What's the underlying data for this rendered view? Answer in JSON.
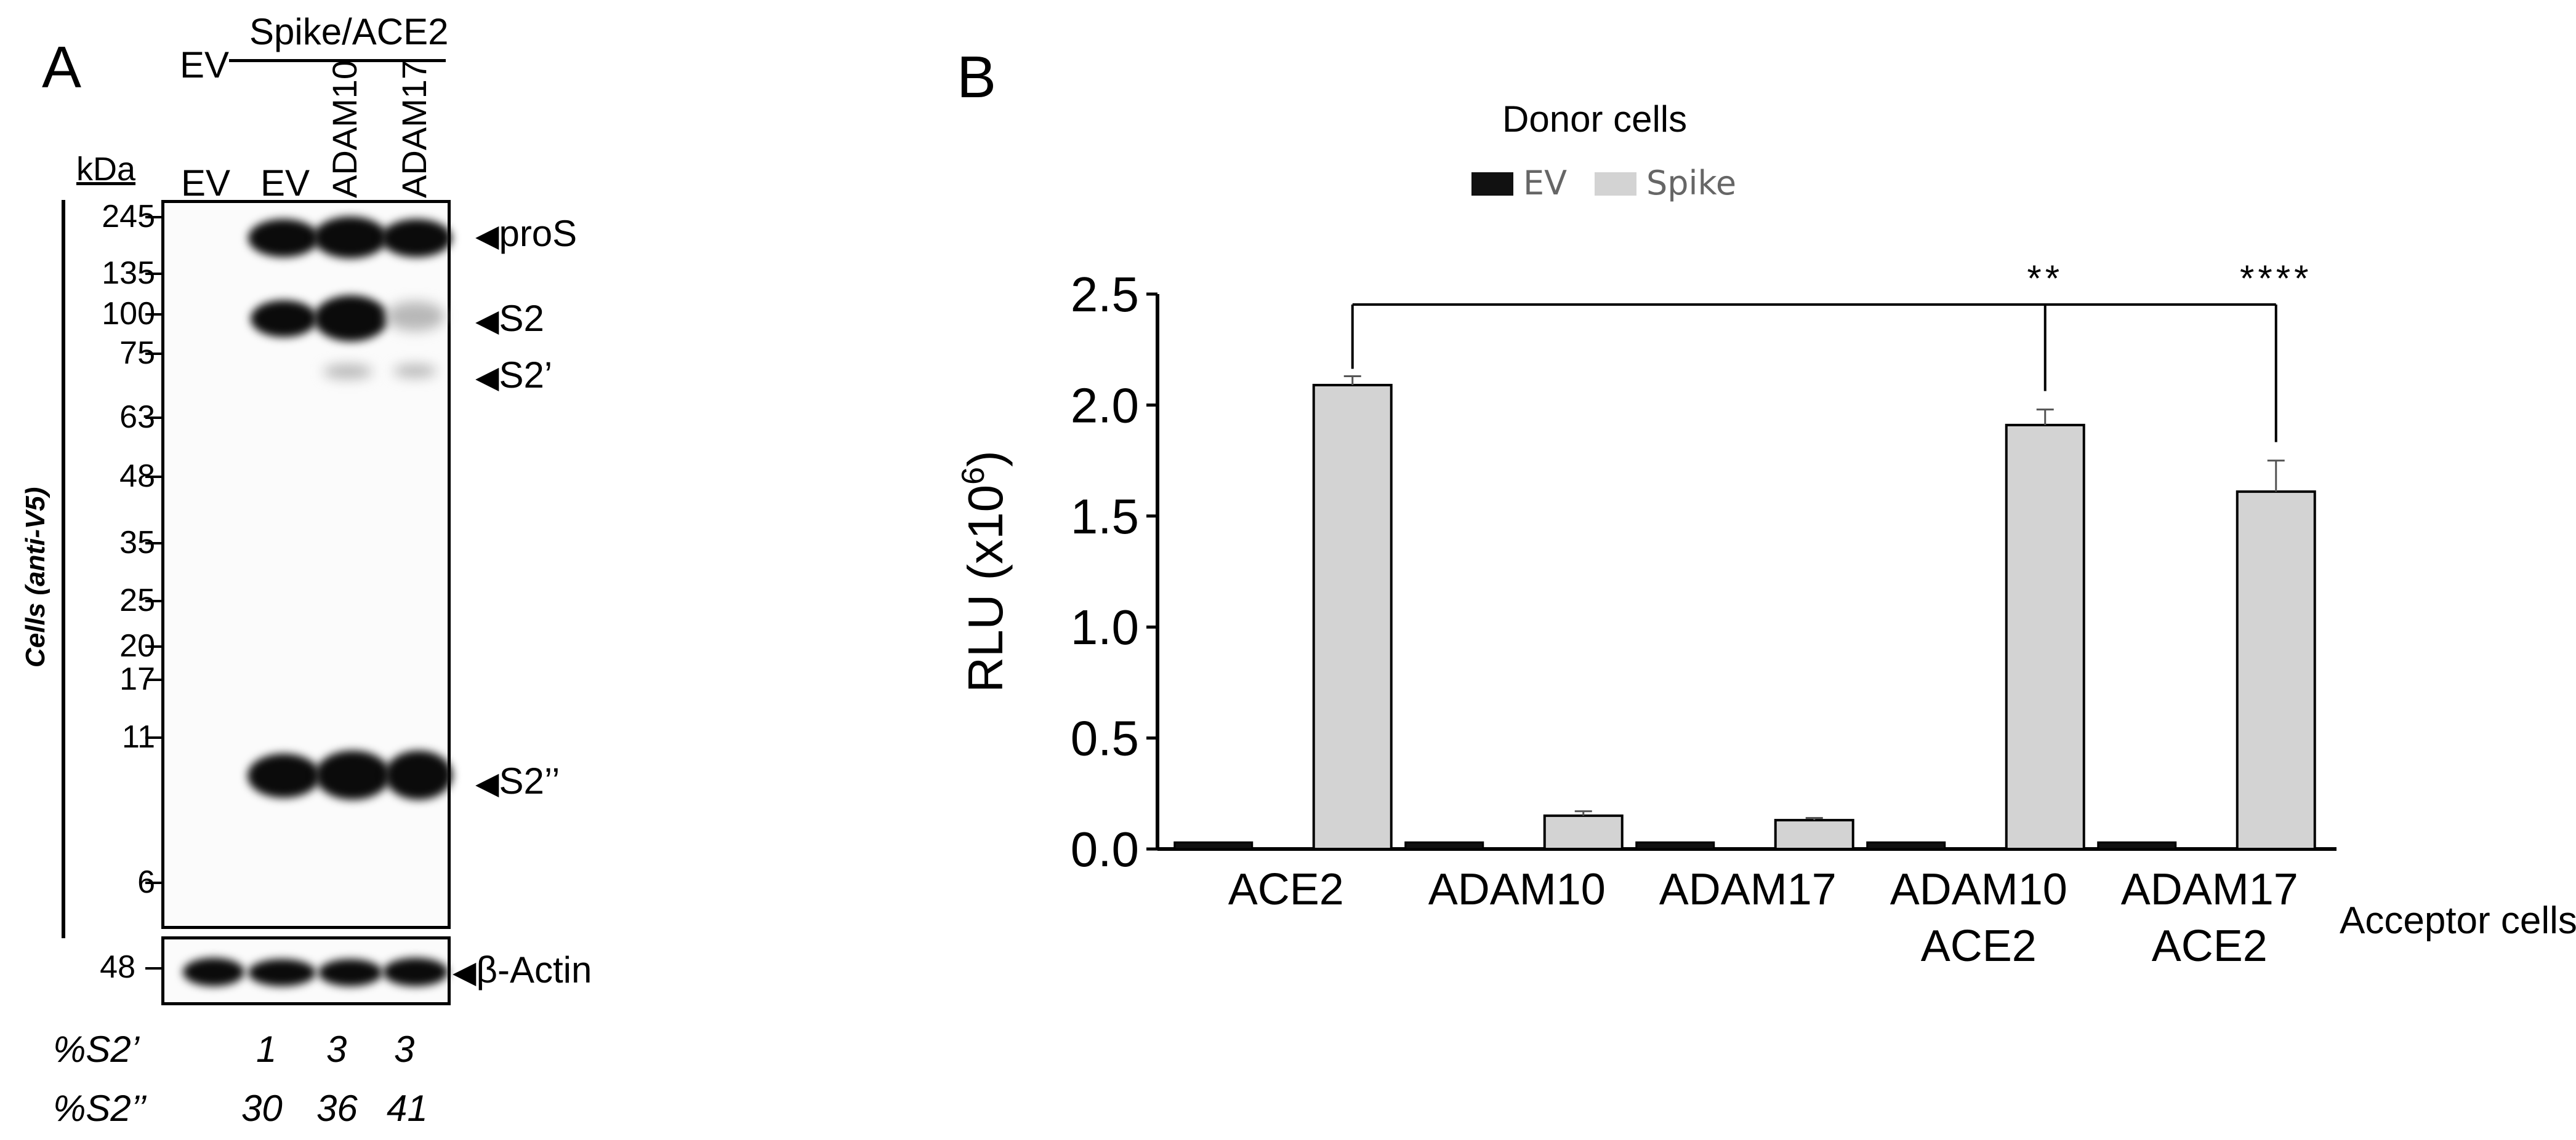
{
  "panelA": {
    "letter": "A",
    "header": {
      "ev_top": "EV",
      "group_label": "Spike/ACE2",
      "lanes": [
        "EV",
        "EV",
        "ADAM10",
        "ADAM17"
      ]
    },
    "kda_label": "kDa",
    "side_label": "Cells (anti-V5)",
    "markers": [
      "245",
      "135",
      "100",
      "75",
      "63",
      "48",
      "35",
      "25",
      "20",
      "17",
      "11",
      "6"
    ],
    "band_labels": {
      "pros": "proS",
      "s2": "S2",
      "s2p": "S2’",
      "s2pp": "S2’’"
    },
    "actin": {
      "marker": "48",
      "label": "β-Actin"
    },
    "quant": {
      "s2p_label": "%S2’",
      "s2p_values": [
        "1",
        "3",
        "3"
      ],
      "s2pp_label": "%S2’’",
      "s2pp_values": [
        "30",
        "36",
        "41"
      ]
    }
  },
  "panelB": {
    "letter": "B",
    "legend_title": "Donor cells",
    "acceptor_label": "Acceptor cells"
  },
  "chart_data": {
    "type": "bar",
    "title": "",
    "ylabel": "RLU (x10⁶)",
    "ylabel_base": "RLU (x10",
    "ylabel_exp": "6",
    "ylabel_close": ")",
    "xlabel": "Acceptor cells",
    "ylim": [
      0,
      2.5
    ],
    "yticks": [
      "0.0",
      "0.5",
      "1.0",
      "1.5",
      "2.0",
      "2.5"
    ],
    "categories": [
      [
        "ACE2"
      ],
      [
        "ADAM10"
      ],
      [
        "ADAM17"
      ],
      [
        "ADAM10",
        "ACE2"
      ],
      [
        "ADAM17",
        "ACE2"
      ]
    ],
    "series": [
      {
        "name": "EV",
        "color": "#111111",
        "values": [
          0.03,
          0.03,
          0.03,
          0.03,
          0.03
        ],
        "errors": [
          0.01,
          0.01,
          0.01,
          0.01,
          0.01
        ]
      },
      {
        "name": "Spike",
        "color": "#d3d3d3",
        "values": [
          2.09,
          0.15,
          0.13,
          1.91,
          1.61
        ],
        "errors": [
          0.04,
          0.02,
          0.01,
          0.07,
          0.14
        ]
      }
    ],
    "significance": [
      {
        "from": 0,
        "to": 3,
        "label": "**"
      },
      {
        "from": 0,
        "to": 4,
        "label": "****"
      }
    ],
    "legend_placement": "top-center",
    "grid": false
  }
}
